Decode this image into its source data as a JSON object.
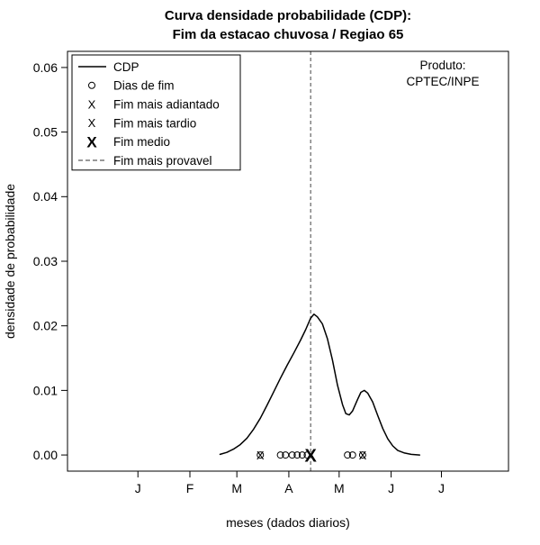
{
  "title": {
    "line1": "Curva densidade probabilidade (CDP):",
    "line2": "Fim da estacao chuvosa / Regiao 65"
  },
  "annotation": {
    "line1": "Produto:",
    "line2": "CPTEC/INPE"
  },
  "axes": {
    "xlabel": "meses (dados diarios)",
    "ylabel": "densidade de probabilidade"
  },
  "legend": {
    "items": [
      {
        "symbol": "solid-line",
        "label": "CDP",
        "color": "#000000"
      },
      {
        "symbol": "circle",
        "label": "Dias de fim",
        "color": "#000000"
      },
      {
        "symbol": "x-red",
        "label": "Fim mais adiantado",
        "color": "#ff0000"
      },
      {
        "symbol": "x-blue",
        "label": "Fim mais tardio",
        "color": "#0000ff"
      },
      {
        "symbol": "x-black-bold",
        "label": "Fim medio",
        "color": "#000000"
      },
      {
        "symbol": "dashed-line",
        "label": "Fim mais provavel",
        "color": "#333333"
      }
    ]
  },
  "chart_data": {
    "type": "line",
    "title": "Curva densidade probabilidade (CDP): Fim da estacao chuvosa / Regiao 65",
    "xlabel": "meses (dados diarios)",
    "ylabel": "densidade de probabilidade",
    "grid": false,
    "legend_position": "top-left",
    "xlim_days": [
      -27,
      236
    ],
    "ylim": [
      -0.0025,
      0.0625
    ],
    "y_ticks": [
      0,
      0.01,
      0.02,
      0.03,
      0.04,
      0.05,
      0.06
    ],
    "x_ticks": [
      {
        "label": "J",
        "day": 15
      },
      {
        "label": "F",
        "day": 46
      },
      {
        "label": "M",
        "day": 74
      },
      {
        "label": "A",
        "day": 105
      },
      {
        "label": "M",
        "day": 135
      },
      {
        "label": "J",
        "day": 166
      },
      {
        "label": "J",
        "day": 196
      }
    ],
    "series": [
      {
        "name": "CDP",
        "color": "#000000",
        "x_day": [
          64,
          68,
          72,
          76,
          80,
          84,
          88,
          92,
          96,
          100,
          104,
          108,
          112,
          115,
          118,
          120,
          122,
          125,
          128,
          131,
          134,
          137,
          139,
          141,
          143,
          146,
          148,
          150,
          152,
          155,
          158,
          161,
          164,
          167,
          170,
          174,
          178,
          183
        ],
        "y": [
          0.0001,
          0.0004,
          0.0009,
          0.0016,
          0.0026,
          0.004,
          0.0057,
          0.0077,
          0.0098,
          0.0119,
          0.0139,
          0.0158,
          0.0178,
          0.0194,
          0.0212,
          0.0218,
          0.0214,
          0.0203,
          0.018,
          0.0147,
          0.0108,
          0.0078,
          0.0064,
          0.0062,
          0.0068,
          0.0086,
          0.0097,
          0.01,
          0.0096,
          0.0082,
          0.0061,
          0.0041,
          0.0025,
          0.0014,
          0.0007,
          0.0003,
          0.0001,
          0.0
        ]
      }
    ],
    "markers": {
      "end_days_circles_day": [
        88,
        100,
        103,
        107,
        110,
        113,
        116,
        140,
        143,
        149
      ],
      "earliest_end": {
        "day": 88,
        "label": "Fim mais adiantado",
        "color": "#ff0000"
      },
      "latest_end": {
        "day": 149,
        "label": "Fim mais tardio",
        "color": "#0000ff"
      },
      "mean_end": {
        "day": 118,
        "label": "Fim medio",
        "color": "#000000"
      },
      "most_probable_end_day": 118,
      "peak_density": 0.0218
    }
  }
}
